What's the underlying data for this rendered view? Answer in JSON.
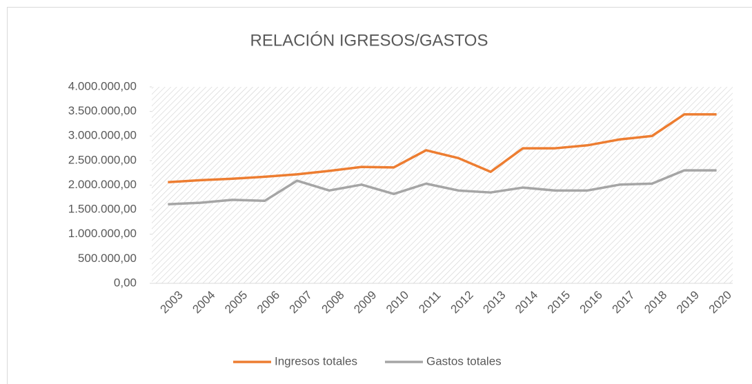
{
  "chart_data": {
    "type": "line",
    "title": "RELACIÓN IGRESOS/GASTOS",
    "categories": [
      "2003",
      "2004",
      "2005",
      "2006",
      "2007",
      "2008",
      "2009",
      "2010",
      "2011",
      "2012",
      "2013",
      "2014",
      "2015",
      "2016",
      "2017",
      "2018",
      "2019",
      "2020"
    ],
    "series": [
      {
        "name": "Ingresos totales",
        "color": "#ed7d31",
        "values": [
          2060000,
          2100000,
          2130000,
          2170000,
          2220000,
          2290000,
          2370000,
          2360000,
          2710000,
          2550000,
          2270000,
          2750000,
          2750000,
          2810000,
          2930000,
          3000000,
          3440000,
          3440000
        ]
      },
      {
        "name": "Gastos totales",
        "color": "#a5a5a5",
        "values": [
          1610000,
          1640000,
          1700000,
          1680000,
          2090000,
          1890000,
          2010000,
          1820000,
          2030000,
          1890000,
          1850000,
          1950000,
          1890000,
          1890000,
          2010000,
          2030000,
          2300000,
          2300000
        ]
      }
    ],
    "ylim": [
      0,
      4000000
    ],
    "yticks": [
      {
        "value": 0,
        "label": "0,00"
      },
      {
        "value": 500000,
        "label": "500.000,00"
      },
      {
        "value": 1000000,
        "label": "1.000.000,00"
      },
      {
        "value": 1500000,
        "label": "1.500.000,00"
      },
      {
        "value": 2000000,
        "label": "2.000.000,00"
      },
      {
        "value": 2500000,
        "label": "2.500.000,00"
      },
      {
        "value": 3000000,
        "label": "3.000.000,00"
      },
      {
        "value": 3500000,
        "label": "3.500.000,00"
      },
      {
        "value": 4000000,
        "label": "4.000.000,00"
      }
    ],
    "legend": "bottom"
  }
}
